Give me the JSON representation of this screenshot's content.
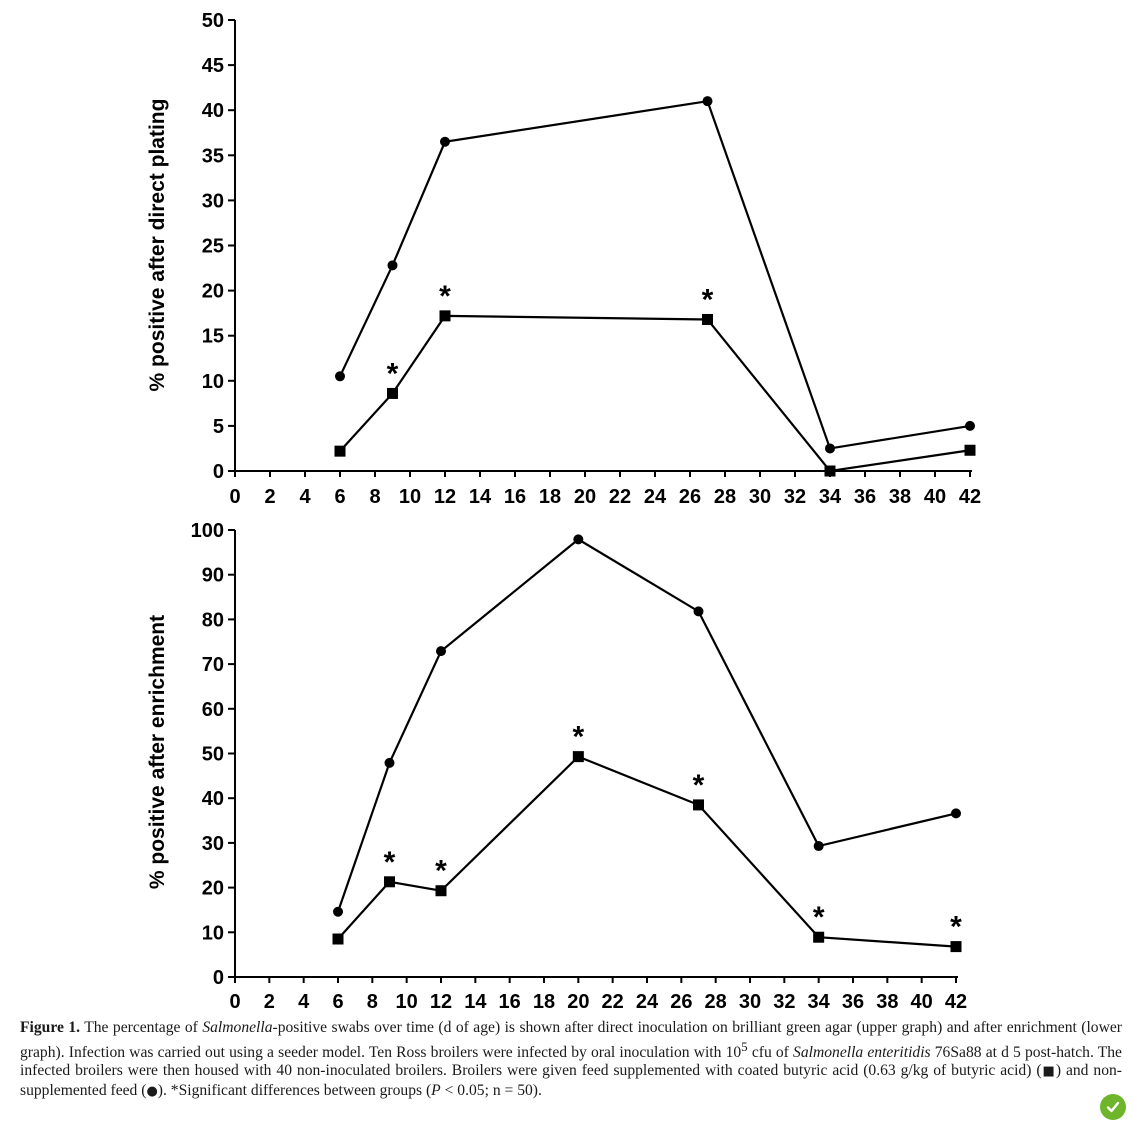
{
  "chart_data": [
    {
      "type": "line",
      "ylabel": "% positive after direct plating",
      "xlabel": "",
      "xlim": [
        0,
        42
      ],
      "ylim": [
        0,
        50
      ],
      "x_ticks": [
        0,
        2,
        4,
        6,
        8,
        10,
        12,
        14,
        16,
        18,
        20,
        22,
        24,
        26,
        28,
        30,
        32,
        34,
        36,
        38,
        40,
        42
      ],
      "y_ticks": [
        0,
        5,
        10,
        15,
        20,
        25,
        30,
        35,
        40,
        45,
        50
      ],
      "series": [
        {
          "marker": "circle",
          "x": [
            6,
            9,
            12,
            27,
            34,
            42
          ],
          "y": [
            10.5,
            22.8,
            36.5,
            41.0,
            2.5,
            5.0
          ]
        },
        {
          "marker": "square",
          "x": [
            6,
            9,
            12,
            27,
            34,
            42
          ],
          "y": [
            2.2,
            8.6,
            17.2,
            16.8,
            0.0,
            2.3
          ]
        }
      ],
      "annotations": [
        {
          "text": "*",
          "x": 9,
          "y": 8.6
        },
        {
          "text": "*",
          "x": 12,
          "y": 17.2
        },
        {
          "text": "*",
          "x": 27,
          "y": 16.8
        }
      ]
    },
    {
      "type": "line",
      "ylabel": "% positive after enrichment",
      "xlabel": "",
      "xlim": [
        0,
        42
      ],
      "ylim": [
        0,
        100
      ],
      "x_ticks": [
        0,
        2,
        4,
        6,
        8,
        10,
        12,
        14,
        16,
        18,
        20,
        22,
        24,
        26,
        28,
        30,
        32,
        34,
        36,
        38,
        40,
        42
      ],
      "y_ticks": [
        0,
        10,
        20,
        30,
        40,
        50,
        60,
        70,
        80,
        90,
        100
      ],
      "series": [
        {
          "marker": "circle",
          "x": [
            6,
            9,
            12,
            20,
            27,
            34,
            42
          ],
          "y": [
            14.6,
            47.9,
            72.9,
            97.9,
            81.8,
            29.3,
            36.6
          ]
        },
        {
          "marker": "square",
          "x": [
            6,
            9,
            12,
            20,
            27,
            34,
            42
          ],
          "y": [
            8.5,
            21.3,
            19.3,
            49.3,
            38.5,
            8.9,
            6.8
          ]
        }
      ],
      "annotations": [
        {
          "text": "*",
          "x": 9,
          "y": 21.3
        },
        {
          "text": "*",
          "x": 12,
          "y": 19.3
        },
        {
          "text": "*",
          "x": 20,
          "y": 49.3
        },
        {
          "text": "*",
          "x": 27,
          "y": 38.5
        },
        {
          "text": "*",
          "x": 34,
          "y": 8.9
        },
        {
          "text": "*",
          "x": 42,
          "y": 6.8
        }
      ]
    }
  ],
  "caption": {
    "fig_label": "Figure 1.",
    "p1": " The percentage of ",
    "i1": "Salmonella",
    "p2": "-positive swabs over time (d of age) is shown after direct inoculation on brilliant green agar (upper graph) and after enrichment (lower graph). Infection was carried out using a seeder model. Ten Ross broilers were infected by oral inoculation with 10",
    "sup": "5",
    "p3": " cfu of ",
    "i2": "Salmonella enteritidis",
    "p4": " 76Sa88 at d 5 post-hatch. The infected broilers were then housed with 40 non-inoculated broilers. Broilers were given feed supplemented with coated butyric acid (0.63 g/kg of butyric acid) (",
    "square_symbol": "■",
    "p5": ") and non-supplemented feed (",
    "circle_symbol": "●",
    "p6": "). *Significant differences between groups (",
    "i3": "P",
    "p7": " < 0.05; n = 50)."
  },
  "icons": {
    "badge": "check-leaf-icon",
    "badge_color": "#6fb52c"
  }
}
